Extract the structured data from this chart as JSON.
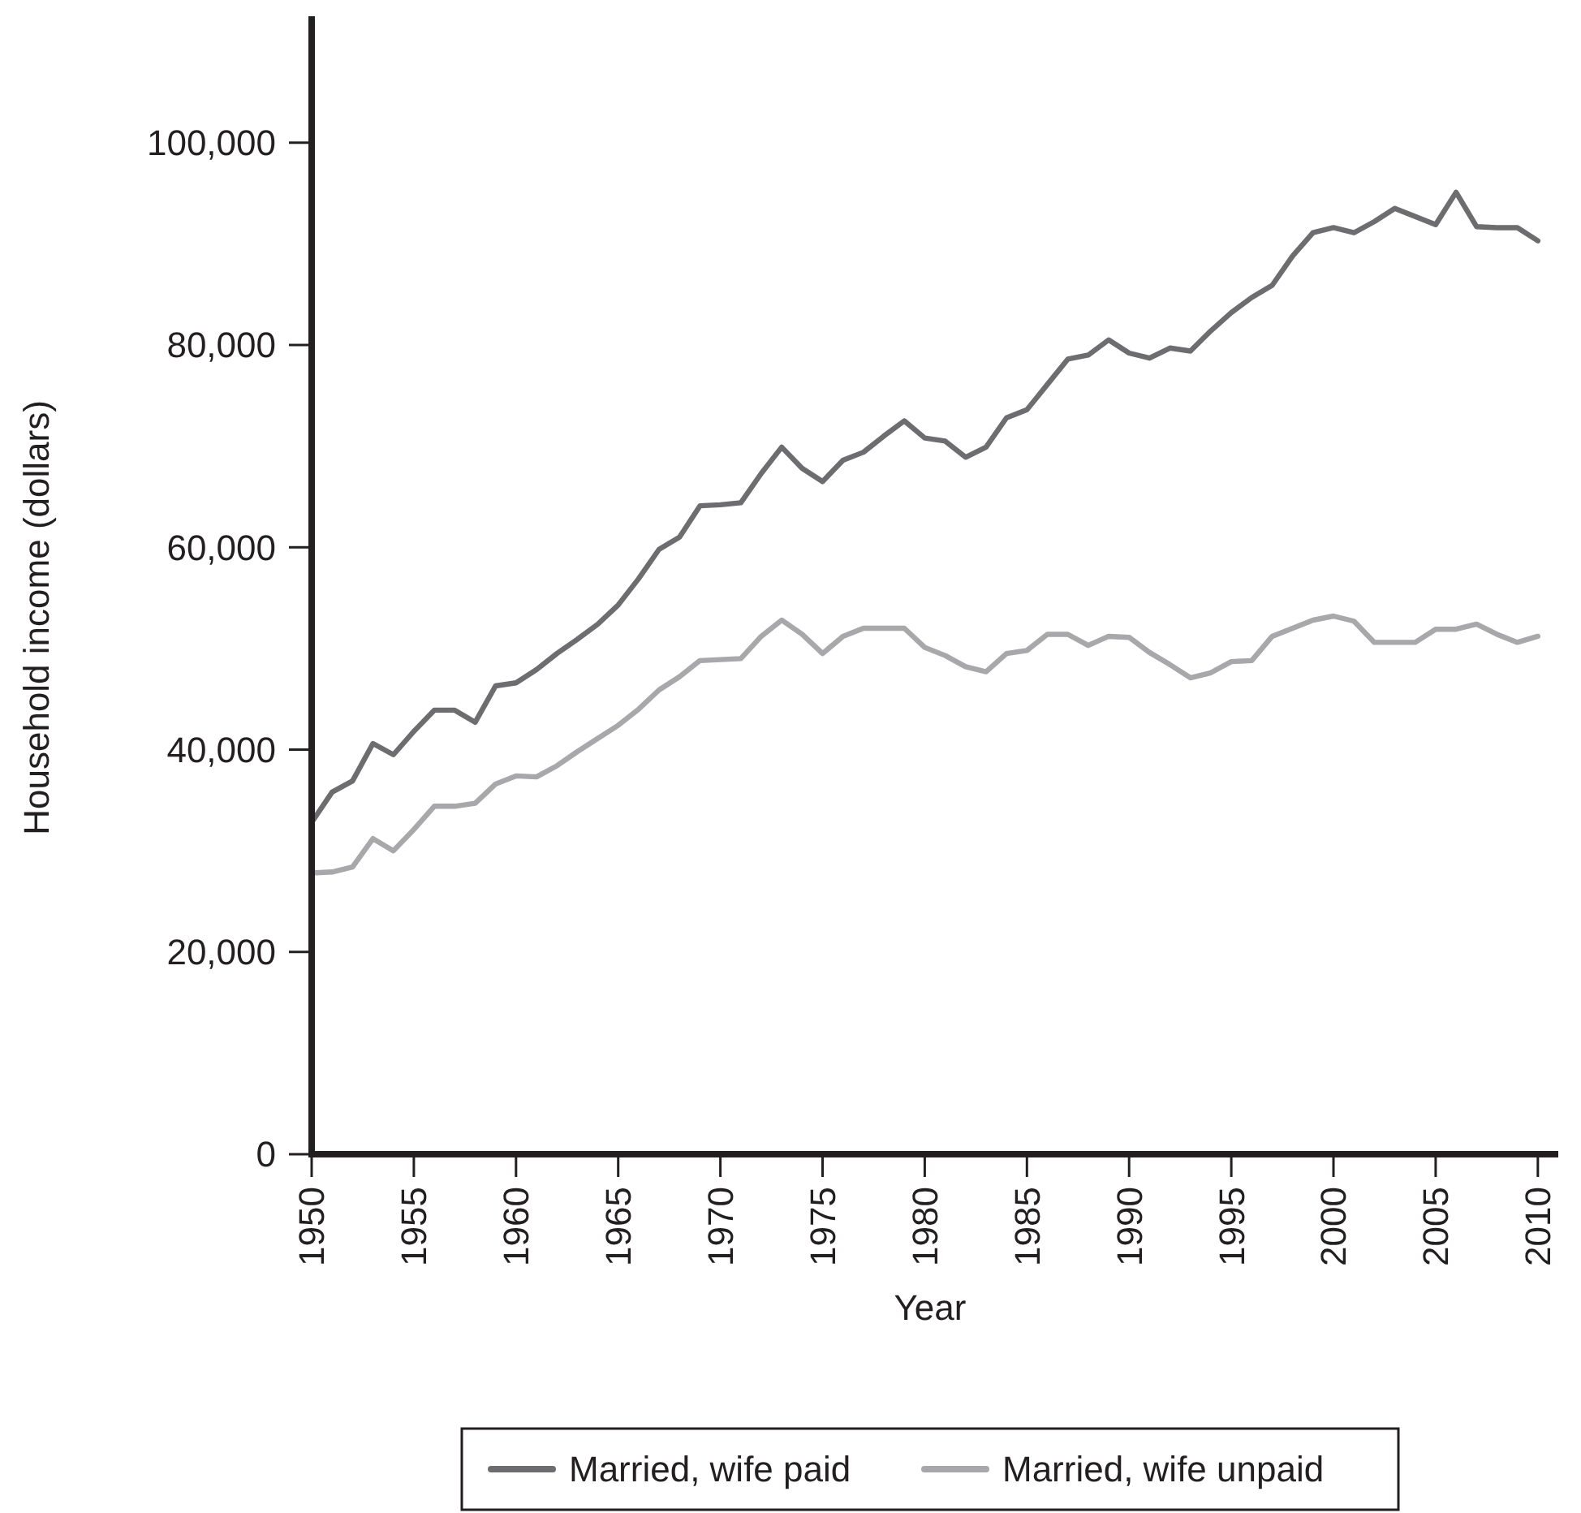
{
  "chart_data": {
    "type": "line",
    "xlabel": "Year",
    "ylabel": "Household income (dollars)",
    "x": [
      1950,
      1951,
      1952,
      1953,
      1954,
      1955,
      1956,
      1957,
      1958,
      1959,
      1960,
      1961,
      1962,
      1963,
      1964,
      1965,
      1966,
      1967,
      1968,
      1969,
      1970,
      1971,
      1972,
      1973,
      1974,
      1975,
      1976,
      1977,
      1978,
      1979,
      1980,
      1981,
      1982,
      1983,
      1984,
      1985,
      1986,
      1987,
      1988,
      1989,
      1990,
      1991,
      1992,
      1993,
      1994,
      1995,
      1996,
      1997,
      1998,
      1999,
      2000,
      2001,
      2002,
      2003,
      2004,
      2005,
      2006,
      2007,
      2008,
      2009,
      2010
    ],
    "series": [
      {
        "name": "Married, wife paid",
        "color": "#6d6d6f",
        "values": [
          32800,
          35800,
          36900,
          40600,
          39500,
          41800,
          43900,
          43900,
          42700,
          46300,
          46600,
          47900,
          49500,
          50900,
          52400,
          54300,
          56900,
          59800,
          61000,
          64100,
          64200,
          64400,
          67300,
          69900,
          67800,
          66500,
          68600,
          69400,
          71000,
          72500,
          70800,
          70500,
          68900,
          69900,
          72800,
          73600,
          76100,
          78600,
          79000,
          80500,
          79200,
          78700,
          79700,
          79400,
          81400,
          83200,
          84700,
          85900,
          88800,
          91100,
          91600,
          91100,
          92200,
          93500,
          92700,
          91900,
          95100,
          91700,
          91600,
          91600,
          90300
        ]
      },
      {
        "name": "Married, wife unpaid",
        "color": "#a8a8aa",
        "values": [
          27800,
          27900,
          28400,
          31200,
          30000,
          32100,
          34400,
          34400,
          34700,
          36600,
          37400,
          37300,
          38400,
          39800,
          41100,
          42400,
          44000,
          45900,
          47200,
          48800,
          48900,
          49000,
          51200,
          52800,
          51400,
          49500,
          51200,
          52000,
          52000,
          52000,
          50100,
          49300,
          48200,
          47700,
          49500,
          49800,
          51400,
          51400,
          50300,
          51200,
          51100,
          49600,
          48400,
          47100,
          47600,
          48700,
          48800,
          51200,
          52000,
          52800,
          53200,
          52700,
          50600,
          50600,
          50600,
          51900,
          51900,
          52400,
          51400,
          50600,
          51200
        ]
      }
    ],
    "xlim": [
      1950,
      2011
    ],
    "xticks": [
      1950,
      1955,
      1960,
      1965,
      1970,
      1975,
      1980,
      1985,
      1990,
      1995,
      2000,
      2005,
      2010
    ],
    "ylim": [
      0,
      112500
    ],
    "yticks": [
      {
        "value": 0,
        "label": "0"
      },
      {
        "value": 20000,
        "label": "20,000"
      },
      {
        "value": 40000,
        "label": "40,000"
      },
      {
        "value": 60000,
        "label": "60,000"
      },
      {
        "value": 80000,
        "label": "80,000"
      },
      {
        "value": 100000,
        "label": "100,000"
      }
    ],
    "grid": false,
    "legend": "bottom",
    "marker": "none",
    "line_style": "solid"
  }
}
